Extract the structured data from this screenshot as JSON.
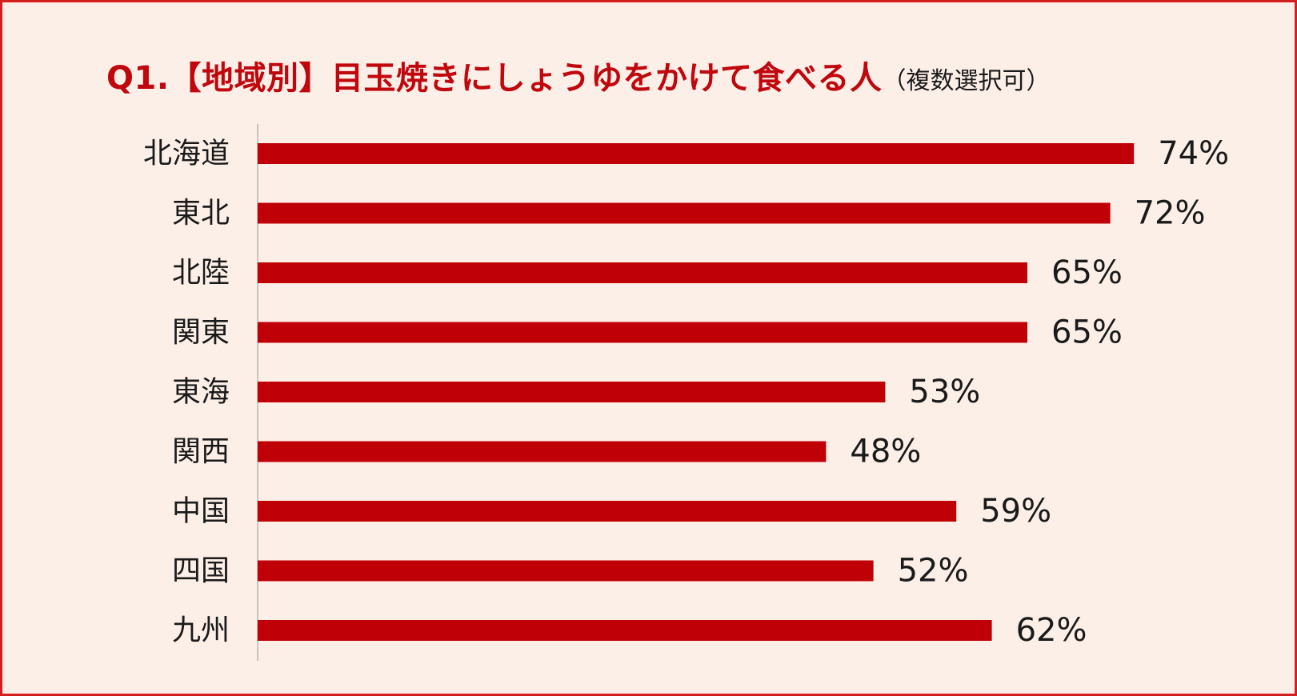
{
  "title": {
    "main": "Q1.【地域別】目玉焼きにしょうゆをかけて食べる人",
    "sub": "（複数選択可）"
  },
  "colors": {
    "bar": "#c00007",
    "frame": "#d41f1f",
    "background": "#fcefe7",
    "title": "#c0070e",
    "text": "#1a1a1a"
  },
  "chart_data": {
    "type": "bar",
    "orientation": "horizontal",
    "categories": [
      "北海道",
      "東北",
      "北陸",
      "関東",
      "東海",
      "関西",
      "中国",
      "四国",
      "九州"
    ],
    "values": [
      74,
      72,
      65,
      65,
      53,
      48,
      59,
      52,
      62
    ],
    "labels": [
      "74%",
      "72%",
      "65%",
      "65%",
      "53%",
      "48%",
      "59%",
      "52%",
      "62%"
    ],
    "unit": "%",
    "title": "Q1.【地域別】目玉焼きにしょうゆをかけて食べる人（複数選択可）",
    "xlim": [
      0,
      100
    ],
    "grid": false,
    "legend": "none"
  }
}
